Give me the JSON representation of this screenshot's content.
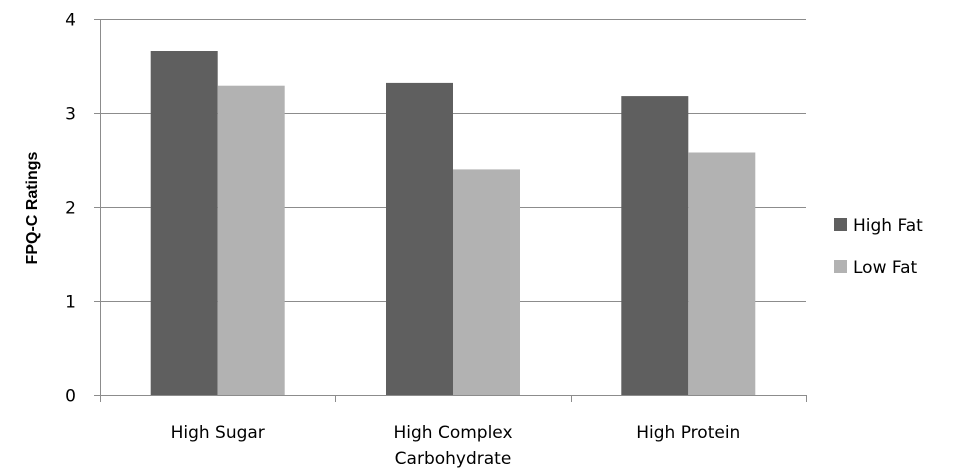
{
  "chart_data": {
    "type": "bar",
    "categories": [
      [
        "High Sugar"
      ],
      [
        "High Complex",
        "Carbohydrate"
      ],
      [
        "High Protein"
      ]
    ],
    "series": [
      {
        "name": "High Fat",
        "color": "#5f5f5f",
        "values": [
          3.66,
          3.32,
          3.18
        ]
      },
      {
        "name": "Low Fat",
        "color": "#b2b2b2",
        "values": [
          3.29,
          2.4,
          2.58
        ]
      }
    ],
    "ylabel": "FPQ-C Ratings",
    "ylim": [
      0,
      4
    ],
    "yticks": [
      "0",
      "1",
      "2",
      "3",
      "4"
    ],
    "grid": true,
    "legend": "right"
  }
}
